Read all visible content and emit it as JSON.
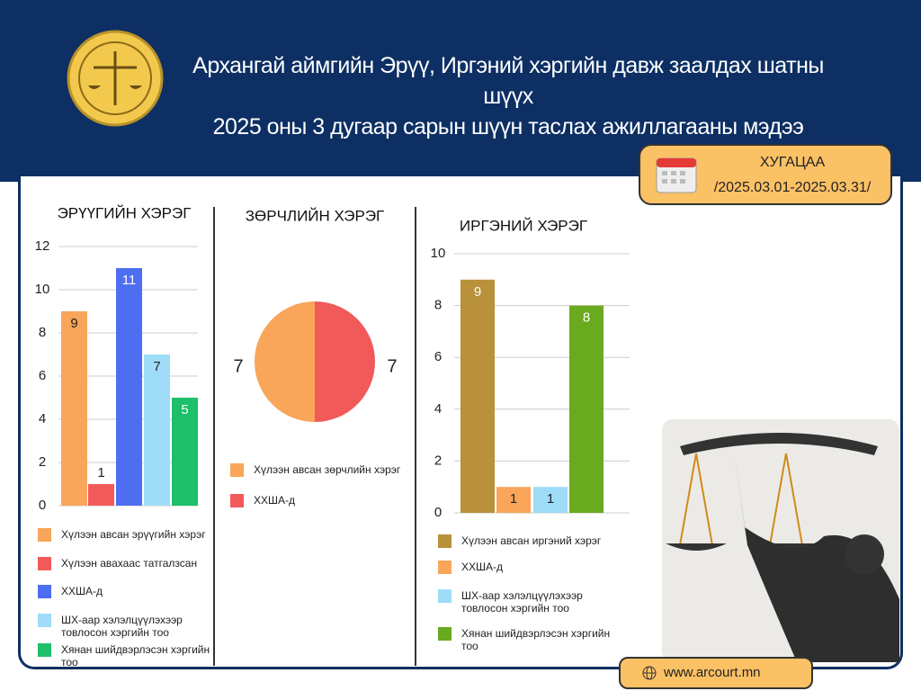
{
  "header": {
    "title_lines": [
      "Архангай аймгийн Эрүү, Иргэний хэргийн давж заалдах шатны шүүх",
      "2025 оны 3 дугаар сарын шүүн таслах ажиллагааны мэдээ"
    ]
  },
  "period": {
    "label": "ХУГАЦАА",
    "range": "/2025.03.01-2025.03.31/"
  },
  "website": "www.arcourt.mn",
  "chart_data": [
    {
      "type": "bar",
      "title": "ЭРҮҮГИЙН ХЭРЭГ",
      "categories": [
        "Хүлээн авсан эрүүгийн хэрэг",
        "Хүлээн авахаас татгалзсан",
        "ХХША-д",
        "ШХ-аар хэлэлцүүлэхээр товлосон хэргийн тоо",
        "Хянан шийдвэрлэсэн хэргийн тоо"
      ],
      "values": [
        9,
        1,
        11,
        7,
        5
      ],
      "colors": [
        "#f9a65a",
        "#f25a5a",
        "#4e6ef2",
        "#9edcf7",
        "#1dbf6a"
      ],
      "ylim": [
        0,
        12
      ],
      "yticks": [
        0,
        2,
        4,
        6,
        8,
        10,
        12
      ],
      "grid": true
    },
    {
      "type": "pie",
      "title": "ЗӨРЧЛИЙН ХЭРЭГ",
      "categories": [
        "Хүлээн авсан зөрчлийн хэрэг",
        "ХХША-д"
      ],
      "values": [
        7,
        7
      ],
      "colors": [
        "#f9a65a",
        "#f25a5a"
      ]
    },
    {
      "type": "bar",
      "title": "ИРГЭНИЙ ХЭРЭГ",
      "categories": [
        "Хүлээн авсан иргэний хэрэг",
        "ХХША-д",
        "ШХ-аар хэлэлцүүлэхээр товлосон хэргийн тоо",
        "Хянан шийдвэрлэсэн хэргийн тоо"
      ],
      "values": [
        9,
        1,
        1,
        8
      ],
      "colors": [
        "#b8913a",
        "#f9a65a",
        "#9edcf7",
        "#6aaa1e"
      ],
      "ylim": [
        0,
        10
      ],
      "yticks": [
        0,
        2,
        4,
        6,
        8,
        10
      ],
      "grid": true
    }
  ]
}
